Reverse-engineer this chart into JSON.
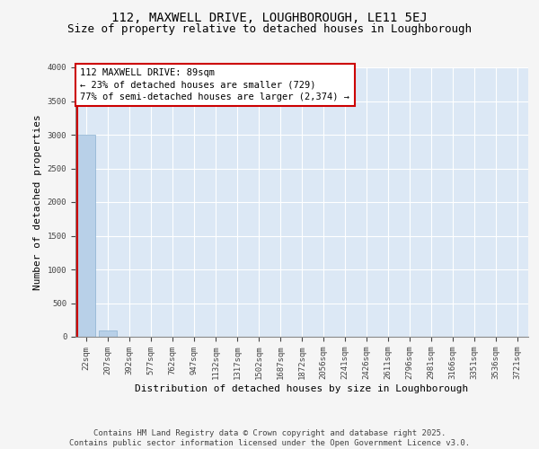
{
  "title_line1": "112, MAXWELL DRIVE, LOUGHBOROUGH, LE11 5EJ",
  "title_line2": "Size of property relative to detached houses in Loughborough",
  "xlabel": "Distribution of detached houses by size in Loughborough",
  "ylabel": "Number of detached properties",
  "categories": [
    "22sqm",
    "207sqm",
    "392sqm",
    "577sqm",
    "762sqm",
    "947sqm",
    "1132sqm",
    "1317sqm",
    "1502sqm",
    "1687sqm",
    "1872sqm",
    "2056sqm",
    "2241sqm",
    "2426sqm",
    "2611sqm",
    "2796sqm",
    "2981sqm",
    "3166sqm",
    "3351sqm",
    "3536sqm",
    "3721sqm"
  ],
  "values": [
    3000,
    100,
    0,
    0,
    0,
    0,
    0,
    0,
    0,
    0,
    0,
    0,
    0,
    0,
    0,
    0,
    0,
    0,
    0,
    0,
    0
  ],
  "ylim": [
    0,
    4000
  ],
  "yticks": [
    0,
    500,
    1000,
    1500,
    2000,
    2500,
    3000,
    3500,
    4000
  ],
  "bar_color": "#b8d0e8",
  "bar_edge_color": "#8ab0d0",
  "background_color": "#dce8f5",
  "grid_color": "#ffffff",
  "annotation_box_text": "112 MAXWELL DRIVE: 89sqm\n← 23% of detached houses are smaller (729)\n77% of semi-detached houses are larger (2,374) →",
  "annotation_box_color": "#cc0000",
  "annotation_box_fill": "#ffffff",
  "vline_color": "#cc0000",
  "footer_line1": "Contains HM Land Registry data © Crown copyright and database right 2025.",
  "footer_line2": "Contains public sector information licensed under the Open Government Licence v3.0.",
  "title_fontsize": 10,
  "subtitle_fontsize": 9,
  "axis_label_fontsize": 8,
  "tick_fontsize": 6.5,
  "annotation_fontsize": 7.5,
  "footer_fontsize": 6.5,
  "fig_bg": "#f5f5f5"
}
